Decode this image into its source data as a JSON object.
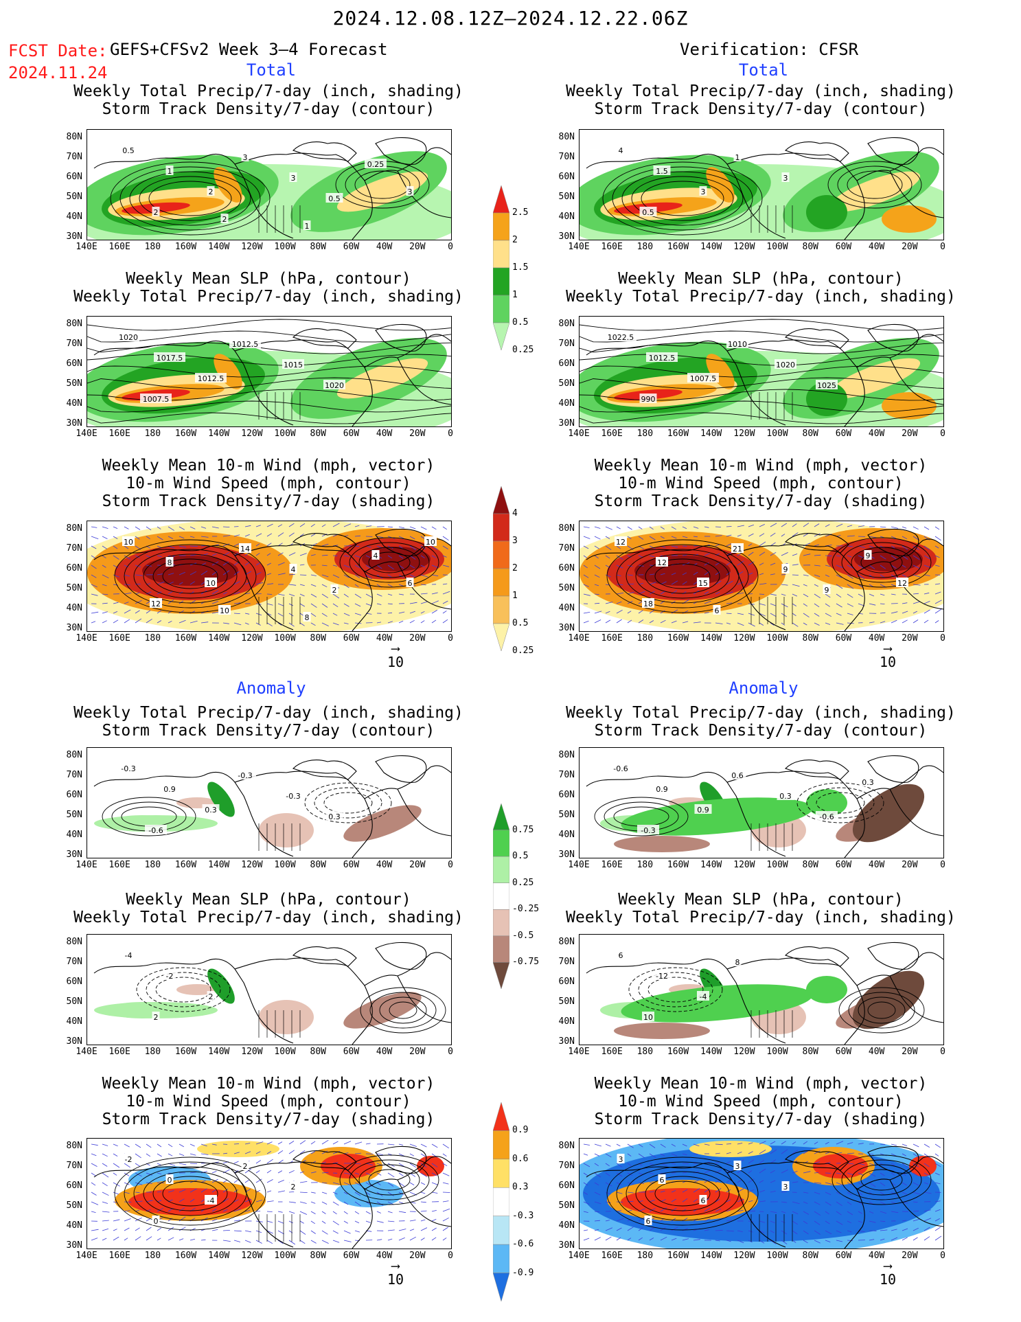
{
  "header": {
    "title": "2024.12.08.12Z–2024.12.22.06Z",
    "fcst_label": "FCST Date:",
    "fcst_date": "2024.11.24",
    "model": "GEFS+CFSv2 Week 3–4 Forecast",
    "verification": "Verification: CFSR"
  },
  "sections": {
    "total": "Total",
    "anomaly": "Anomaly"
  },
  "panel_titles": {
    "precip_track": [
      "Weekly Total Precip/7-day (inch, shading)",
      "Storm Track Density/7-day (contour)"
    ],
    "slp_precip": [
      "Weekly Mean SLP (hPa, contour)",
      "Weekly Total Precip/7-day (inch, shading)"
    ],
    "wind": [
      "Weekly Mean 10-m Wind (mph, vector)",
      "10-m Wind Speed (mph, contour)",
      "Storm Track Density/7-day (shading)"
    ]
  },
  "axes": {
    "lat_labels": [
      "80N",
      "70N",
      "60N",
      "50N",
      "40N",
      "30N"
    ],
    "lon_labels": [
      "140E",
      "160E",
      "180",
      "160W",
      "140W",
      "120W",
      "100W",
      "80W",
      "60W",
      "40W",
      "20W",
      "0"
    ]
  },
  "vector_reference": "10",
  "colorbars": {
    "total_precip": {
      "labels": [
        "2.5",
        "2",
        "1.5",
        "1",
        "0.5",
        "0.25"
      ],
      "colors": [
        "#e8231a",
        "#f5a31a",
        "#ffe08a",
        "#23a423",
        "#5fd35f",
        "#b7f5b0"
      ]
    },
    "total_track": {
      "labels": [
        "4",
        "3",
        "2",
        "1",
        "0.5",
        "0.25"
      ],
      "colors": [
        "#8f1010",
        "#d22a1a",
        "#f06a1a",
        "#f59a1a",
        "#f8c05a",
        "#fdf2a8"
      ]
    },
    "anom_precip": {
      "labels": [
        "0.75",
        "0.5",
        "0.25",
        "-0.25",
        "-0.5",
        "-0.75"
      ],
      "colors": [
        "#1f9e2a",
        "#4fd04f",
        "#aef0a6",
        "#ffffff",
        "#e6c2b5",
        "#b8877a",
        "#6e4a3c"
      ]
    },
    "anom_track": {
      "labels": [
        "0.9",
        "0.6",
        "0.3",
        "-0.3",
        "-0.6",
        "-0.9"
      ],
      "colors": [
        "#f2321a",
        "#f5a21a",
        "#ffe066",
        "#ffffff",
        "#b8e6f5",
        "#5cb8f5",
        "#1e6fe0"
      ]
    }
  },
  "panels": [
    {
      "id": "fc-total-precip",
      "labels": [
        "0.5",
        "1",
        "2",
        "2",
        "3",
        "3",
        "0.5",
        "0.25",
        "3",
        "2",
        "1"
      ]
    },
    {
      "id": "ob-total-precip",
      "labels": [
        "4",
        "1.5",
        "3",
        "0.5",
        "1",
        "3"
      ]
    },
    {
      "id": "fc-total-slp",
      "labels": [
        "1020",
        "1017.5",
        "1012.5",
        "1007.5",
        "1012.5",
        "1015",
        "1020"
      ]
    },
    {
      "id": "ob-total-slp",
      "labels": [
        "1022.5",
        "1012.5",
        "1007.5",
        "990",
        "1010",
        "1020",
        "1025"
      ]
    },
    {
      "id": "fc-total-wind",
      "labels": [
        "10",
        "8",
        "10",
        "12",
        "14",
        "4",
        "2",
        "4",
        "6",
        "10",
        "8",
        "10"
      ]
    },
    {
      "id": "ob-total-wind",
      "labels": [
        "12",
        "12",
        "15",
        "18",
        "21",
        "9",
        "9",
        "9",
        "12",
        "6"
      ]
    },
    {
      "id": "fc-anom-precip",
      "labels": [
        "-0.3",
        "0.9",
        "0.3",
        "-0.6",
        "-0.3",
        "-0.3",
        "0.3"
      ]
    },
    {
      "id": "ob-anom-precip",
      "labels": [
        "-0.6",
        "0.9",
        "0.9",
        "-0.3",
        "0.6",
        "0.3",
        "-0.6",
        "0.3"
      ]
    },
    {
      "id": "fc-anom-slp",
      "labels": [
        "-4",
        "-2",
        "2",
        "2"
      ]
    },
    {
      "id": "ob-anom-slp",
      "labels": [
        "6",
        "-12",
        "-4",
        "10",
        "8"
      ]
    },
    {
      "id": "fc-anom-wind",
      "labels": [
        "-2",
        "0",
        "-4",
        "0",
        "2",
        "2"
      ]
    },
    {
      "id": "ob-anom-wind",
      "labels": [
        "3",
        "6",
        "6",
        "6",
        "3",
        "3"
      ]
    }
  ]
}
